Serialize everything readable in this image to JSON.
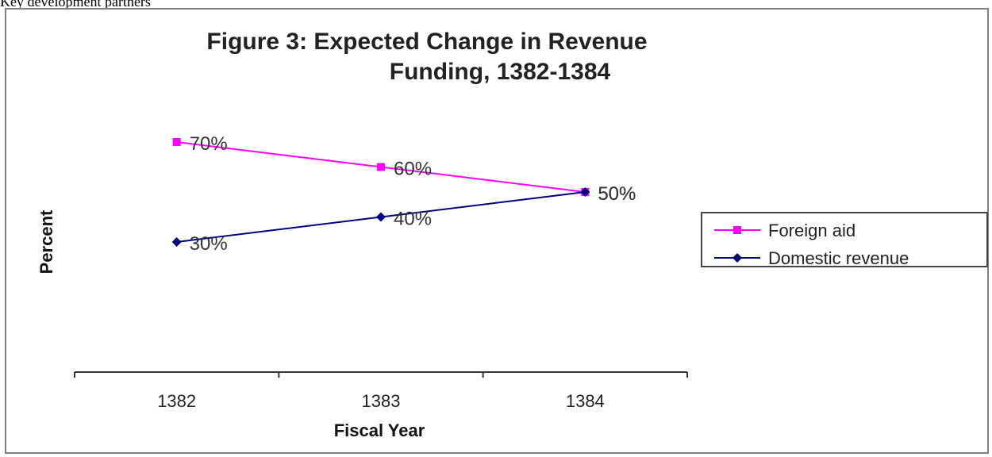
{
  "page_caption": "Key development partners",
  "chart_data": {
    "type": "line",
    "title_lines": [
      "Figure 3: Expected Change in Revenue",
      "Funding, 1382-1384"
    ],
    "xlabel": "Fiscal Year",
    "ylabel": "Percent",
    "categories": [
      "1382",
      "1383",
      "1384"
    ],
    "ylim": [
      0,
      100
    ],
    "grid": false,
    "legend_position": "right",
    "series": [
      {
        "name": "Foreign aid",
        "values": [
          70,
          60,
          50
        ],
        "labels": [
          "70%",
          "60%",
          "50%"
        ],
        "color": "#ff00ff",
        "marker": "square"
      },
      {
        "name": "Domestic revenue",
        "values": [
          30,
          40,
          50
        ],
        "labels": [
          "30%",
          "40%",
          "50%"
        ],
        "color": "#000080",
        "marker": "diamond"
      }
    ]
  }
}
